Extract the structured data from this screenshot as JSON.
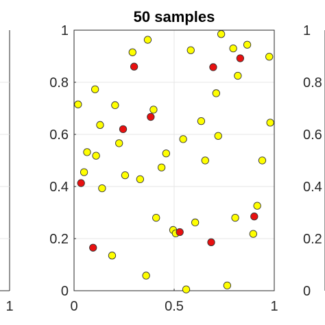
{
  "chart_data": [
    {
      "panel": "left",
      "type": "scatter",
      "x_tick_labels": [
        "1"
      ],
      "y_tick_labels": [],
      "grid": true
    },
    {
      "panel": "center",
      "type": "scatter",
      "title": "50 samples",
      "xlim": [
        0,
        1
      ],
      "ylim": [
        0,
        1
      ],
      "x_tick_labels": [
        "0",
        "0.5",
        "1"
      ],
      "y_tick_labels": [
        "0",
        "0.2",
        "0.4",
        "0.6",
        "0.8",
        "1"
      ],
      "grid": true,
      "colors": {
        "yellow": "#ffff00",
        "red": "#e81010",
        "edge": "#333333"
      },
      "points": [
        {
          "x": 0.02,
          "y": 0.715,
          "c": "yellow"
        },
        {
          "x": 0.035,
          "y": 0.413,
          "c": "red"
        },
        {
          "x": 0.05,
          "y": 0.455,
          "c": "yellow"
        },
        {
          "x": 0.065,
          "y": 0.532,
          "c": "yellow"
        },
        {
          "x": 0.095,
          "y": 0.165,
          "c": "red"
        },
        {
          "x": 0.105,
          "y": 0.773,
          "c": "yellow"
        },
        {
          "x": 0.11,
          "y": 0.518,
          "c": "yellow"
        },
        {
          "x": 0.13,
          "y": 0.636,
          "c": "yellow"
        },
        {
          "x": 0.14,
          "y": 0.393,
          "c": "yellow"
        },
        {
          "x": 0.19,
          "y": 0.135,
          "c": "yellow"
        },
        {
          "x": 0.205,
          "y": 0.712,
          "c": "yellow"
        },
        {
          "x": 0.225,
          "y": 0.566,
          "c": "yellow"
        },
        {
          "x": 0.245,
          "y": 0.62,
          "c": "red"
        },
        {
          "x": 0.255,
          "y": 0.443,
          "c": "yellow"
        },
        {
          "x": 0.292,
          "y": 0.915,
          "c": "yellow"
        },
        {
          "x": 0.3,
          "y": 0.86,
          "c": "red"
        },
        {
          "x": 0.33,
          "y": 0.428,
          "c": "yellow"
        },
        {
          "x": 0.36,
          "y": 0.058,
          "c": "yellow"
        },
        {
          "x": 0.368,
          "y": 0.963,
          "c": "yellow"
        },
        {
          "x": 0.383,
          "y": 0.667,
          "c": "red"
        },
        {
          "x": 0.397,
          "y": 0.695,
          "c": "yellow"
        },
        {
          "x": 0.41,
          "y": 0.28,
          "c": "yellow"
        },
        {
          "x": 0.437,
          "y": 0.473,
          "c": "yellow"
        },
        {
          "x": 0.46,
          "y": 0.527,
          "c": "yellow"
        },
        {
          "x": 0.495,
          "y": 0.233,
          "c": "yellow"
        },
        {
          "x": 0.508,
          "y": 0.22,
          "c": "yellow"
        },
        {
          "x": 0.528,
          "y": 0.225,
          "c": "red"
        },
        {
          "x": 0.545,
          "y": 0.582,
          "c": "yellow"
        },
        {
          "x": 0.56,
          "y": 0.005,
          "c": "yellow"
        },
        {
          "x": 0.583,
          "y": 0.923,
          "c": "yellow"
        },
        {
          "x": 0.605,
          "y": 0.262,
          "c": "yellow"
        },
        {
          "x": 0.635,
          "y": 0.651,
          "c": "yellow"
        },
        {
          "x": 0.655,
          "y": 0.5,
          "c": "yellow"
        },
        {
          "x": 0.685,
          "y": 0.186,
          "c": "red"
        },
        {
          "x": 0.695,
          "y": 0.858,
          "c": "red"
        },
        {
          "x": 0.71,
          "y": 0.758,
          "c": "yellow"
        },
        {
          "x": 0.72,
          "y": 0.594,
          "c": "yellow"
        },
        {
          "x": 0.735,
          "y": 0.985,
          "c": "yellow"
        },
        {
          "x": 0.765,
          "y": 0.02,
          "c": "yellow"
        },
        {
          "x": 0.795,
          "y": 0.93,
          "c": "yellow"
        },
        {
          "x": 0.805,
          "y": 0.28,
          "c": "yellow"
        },
        {
          "x": 0.818,
          "y": 0.825,
          "c": "yellow"
        },
        {
          "x": 0.83,
          "y": 0.892,
          "c": "red"
        },
        {
          "x": 0.865,
          "y": 0.944,
          "c": "yellow"
        },
        {
          "x": 0.895,
          "y": 0.218,
          "c": "yellow"
        },
        {
          "x": 0.9,
          "y": 0.285,
          "c": "red"
        },
        {
          "x": 0.915,
          "y": 0.326,
          "c": "yellow"
        },
        {
          "x": 0.94,
          "y": 0.5,
          "c": "yellow"
        },
        {
          "x": 0.975,
          "y": 0.898,
          "c": "yellow"
        },
        {
          "x": 0.98,
          "y": 0.645,
          "c": "yellow"
        }
      ]
    },
    {
      "panel": "right",
      "type": "scatter",
      "y_tick_labels": [
        "0",
        "0.2",
        "0.4",
        "0.6",
        "0.8",
        "1"
      ],
      "grid": true
    }
  ]
}
